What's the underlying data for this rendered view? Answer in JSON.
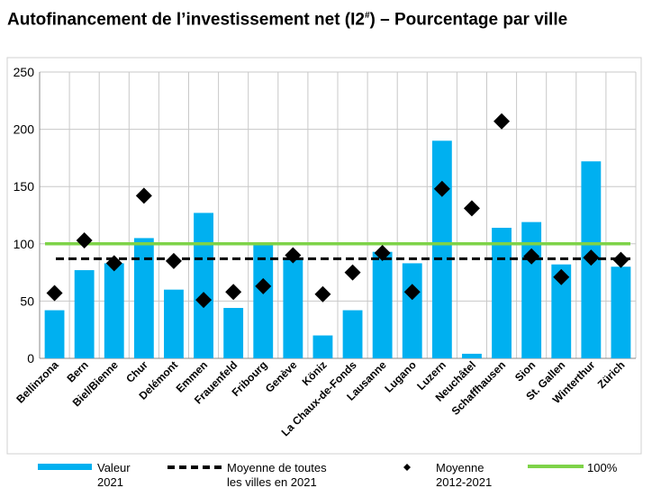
{
  "chart_data": {
    "type": "bar",
    "title": "Autofinancement de l’investissement net (I2#) – Pourcentage par ville",
    "title_main": "Autofinancement de l’investissement net (I2",
    "title_sup": "#",
    "title_end": ") – Pourcentage par ville",
    "categories": [
      "Bellinzona",
      "Bern",
      "Biel/Bienne",
      "Chur",
      "Delémont",
      "Emmen",
      "Frauenfeld",
      "Fribourg",
      "Genève",
      "Köniz",
      "La Chaux-de-Fonds",
      "Lausanne",
      "Lugano",
      "Luzern",
      "Neuchâtel",
      "Schaffhausen",
      "Sion",
      "St. Gallen",
      "Winterthur",
      "Zürich"
    ],
    "series": [
      {
        "name": "Valeur 2021",
        "type": "bar",
        "color": "#00b0f0",
        "values": [
          42,
          77,
          83,
          105,
          60,
          127,
          44,
          100,
          87,
          20,
          42,
          93,
          83,
          190,
          4,
          114,
          119,
          82,
          172,
          80
        ]
      },
      {
        "name": "Moyenne 2012-2021",
        "type": "scatter",
        "color": "#000000",
        "values": [
          57,
          103,
          83,
          142,
          85,
          51,
          58,
          63,
          90,
          56,
          75,
          92,
          58,
          148,
          131,
          207,
          89,
          71,
          88,
          86
        ]
      },
      {
        "name": "Moyenne de toutes les villes en 2021",
        "type": "hline",
        "color": "#000000",
        "value": 87
      },
      {
        "name": "100%",
        "type": "hline",
        "color": "#7ed348",
        "value": 100
      }
    ],
    "yticks": [
      0,
      50,
      100,
      150,
      200,
      250
    ],
    "ylim": [
      0,
      250
    ],
    "xlabel": "",
    "ylabel": "",
    "legend": {
      "placement": "bottom",
      "items": [
        {
          "line1": "Valeur",
          "line2": "2021"
        },
        {
          "line1": "Moyenne de toutes",
          "line2": "les villes en 2021"
        },
        {
          "line1": "Moyenne",
          "line2": "2012-2021"
        },
        {
          "line1": "100%",
          "line2": ""
        }
      ]
    }
  }
}
